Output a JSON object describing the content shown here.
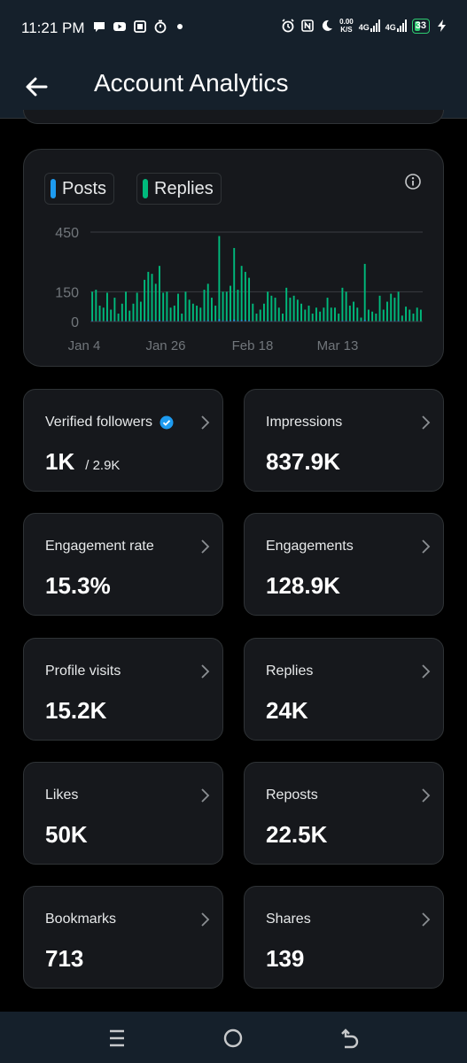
{
  "status_bar": {
    "time": "11:21 PM",
    "speed_top": "0.00",
    "speed_bottom": "K/S",
    "net1": "4G",
    "net2": "4G",
    "battery": "33",
    "icons": [
      "chat-icon",
      "youtube-icon",
      "office-icon",
      "timer-icon",
      "alarm-icon",
      "nfc-icon",
      "moon-icon",
      "charging-icon"
    ]
  },
  "header": {
    "title": "Account Analytics",
    "back_icon": "arrow-left-icon"
  },
  "chart": {
    "legend": [
      {
        "label": "Posts",
        "color": "#1d9bf0"
      },
      {
        "label": "Replies",
        "color": "#00ba7c"
      }
    ],
    "info_icon": "info-icon"
  },
  "chart_data": {
    "type": "bar",
    "y_ticks": [
      "450",
      "150",
      "0"
    ],
    "ylim": [
      0,
      450
    ],
    "x_tick_labels": [
      "Jan 4",
      "Jan 26",
      "Feb 18",
      "Mar 13"
    ],
    "legend_placement": "top-left",
    "grid": true,
    "series": [
      {
        "name": "Replies",
        "color": "#00ba7c",
        "values": [
          150,
          160,
          80,
          70,
          145,
          60,
          120,
          40,
          90,
          150,
          55,
          90,
          145,
          100,
          210,
          250,
          240,
          190,
          280,
          145,
          150,
          70,
          80,
          140,
          40,
          150,
          110,
          90,
          80,
          70,
          160,
          190,
          120,
          80,
          430,
          150,
          150,
          180,
          370,
          160,
          280,
          250,
          220,
          90,
          40,
          60,
          90,
          150,
          130,
          120,
          70,
          40,
          170,
          120,
          130,
          110,
          90,
          60,
          80,
          40,
          70,
          50,
          70,
          120,
          70,
          70,
          40,
          170,
          150,
          80,
          100,
          70,
          20,
          290,
          60,
          50,
          40,
          130,
          60,
          100,
          140,
          120,
          150,
          30,
          75,
          60,
          40,
          70,
          60
        ]
      },
      {
        "name": "Posts",
        "color": "#1d9bf0",
        "values": [
          5,
          3,
          4,
          2,
          5,
          2,
          4,
          2,
          3,
          5,
          2,
          3,
          5,
          3,
          6,
          7,
          6,
          5,
          8,
          4,
          5,
          3,
          3,
          4,
          2,
          5,
          4,
          3,
          3,
          3,
          5,
          6,
          4,
          3,
          12,
          5,
          5,
          6,
          10,
          5,
          8,
          7,
          6,
          3,
          2,
          2,
          3,
          5,
          4,
          4,
          3,
          2,
          5,
          4,
          4,
          4,
          3,
          2,
          3,
          2,
          3,
          2,
          3,
          4,
          3,
          3,
          2,
          5,
          5,
          3,
          3,
          3,
          1,
          8,
          2,
          2,
          2,
          4,
          2,
          3,
          4,
          4,
          5,
          1,
          3,
          2,
          2,
          3,
          2
        ]
      }
    ]
  },
  "stats": [
    {
      "label": "Verified followers",
      "value": "1K",
      "sub": "/ 2.9K",
      "verified": true
    },
    {
      "label": "Impressions",
      "value": "837.9K"
    },
    {
      "label": "Engagement rate",
      "value": "15.3%"
    },
    {
      "label": "Engagements",
      "value": "128.9K"
    },
    {
      "label": "Profile visits",
      "value": "15.2K"
    },
    {
      "label": "Replies",
      "value": "24K"
    },
    {
      "label": "Likes",
      "value": "50K"
    },
    {
      "label": "Reposts",
      "value": "22.5K"
    },
    {
      "label": "Bookmarks",
      "value": "713"
    },
    {
      "label": "Shares",
      "value": "139"
    }
  ],
  "nav": {
    "icons": [
      "recents-icon",
      "home-icon",
      "back-icon"
    ]
  }
}
